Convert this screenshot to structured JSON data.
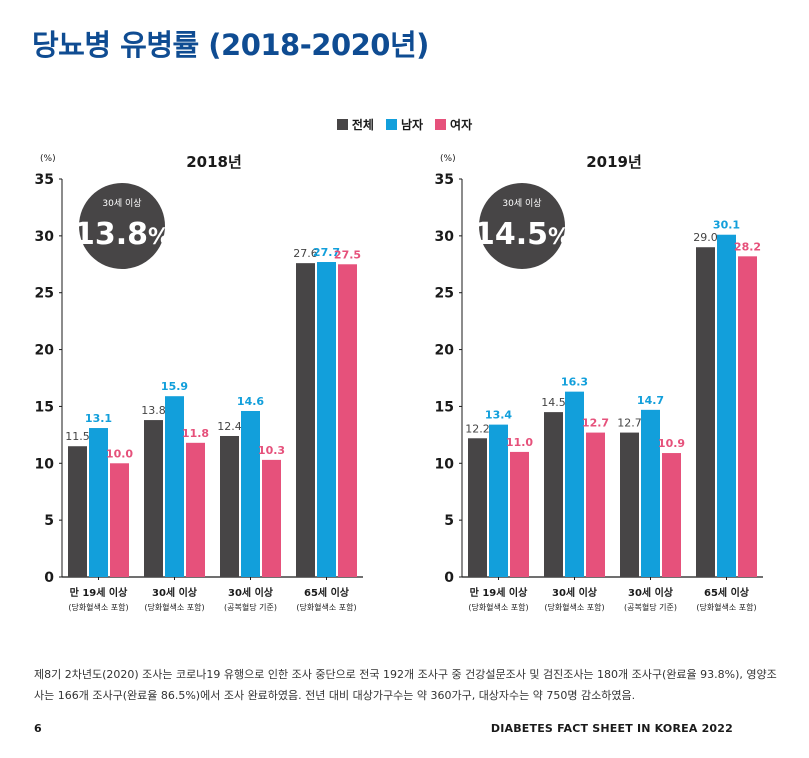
{
  "page": {
    "title": "당뇨병 유병률 (2018-2020년)",
    "footnote": "제8기 2차년도(2020) 조사는 코로나19 유행으로 인한 조사 중단으로 전국 192개 조사구 중 건강설문조사 및 검진조사는 180개 조사구(완료율 93.8%), 영양조사는 166개 조사구(완료율 86.5%)에서 조사 완료하였음. 전년 대비 대상가구수는 약 360가구, 대상자수는 약 750명 감소하였음.",
    "page_number": "6",
    "footer": "DIABETES FACT SHEET IN KOREA 2022"
  },
  "legend": [
    {
      "name": "전체",
      "color": "#474546"
    },
    {
      "name": "남자",
      "color": "#129fdb"
    },
    {
      "name": "여자",
      "color": "#e6517b"
    }
  ],
  "chart_data": [
    {
      "type": "bar",
      "title": "2018년",
      "ylabel": "(%)",
      "ylim": [
        0,
        35
      ],
      "yticks": [
        0,
        5,
        10,
        15,
        20,
        25,
        30,
        35
      ],
      "grid": false,
      "badge": {
        "label": "30세 이상",
        "value": "13.8",
        "unit": "%"
      },
      "categories": [
        {
          "label": "만 19세 이상",
          "sublabel": "(당화혈색소 포함)"
        },
        {
          "label": "30세 이상",
          "sublabel": "(당화혈색소 포함)"
        },
        {
          "label": "30세 이상",
          "sublabel": "(공복혈당 기준)"
        },
        {
          "label": "65세 이상",
          "sublabel": "(당화혈색소 포함)"
        }
      ],
      "series": [
        {
          "name": "전체",
          "color": "#474546",
          "label_color": "#444444",
          "values": [
            11.5,
            13.8,
            12.4,
            27.6
          ]
        },
        {
          "name": "남자",
          "color": "#129fdb",
          "label_color": "#129fdb",
          "values": [
            13.1,
            15.9,
            14.6,
            27.7
          ]
        },
        {
          "name": "여자",
          "color": "#e6517b",
          "label_color": "#e6517b",
          "values": [
            10.0,
            11.8,
            10.3,
            27.5
          ]
        }
      ]
    },
    {
      "type": "bar",
      "title": "2019년",
      "ylabel": "(%)",
      "ylim": [
        0,
        35
      ],
      "yticks": [
        0,
        5,
        10,
        15,
        20,
        25,
        30,
        35
      ],
      "grid": false,
      "badge": {
        "label": "30세 이상",
        "value": "14.5",
        "unit": "%"
      },
      "categories": [
        {
          "label": "만 19세 이상",
          "sublabel": "(당화혈색소 포함)"
        },
        {
          "label": "30세 이상",
          "sublabel": "(당화혈색소 포함)"
        },
        {
          "label": "30세 이상",
          "sublabel": "(공복혈당 기준)"
        },
        {
          "label": "65세 이상",
          "sublabel": "(당화혈색소 포함)"
        }
      ],
      "series": [
        {
          "name": "전체",
          "color": "#474546",
          "label_color": "#444444",
          "values": [
            12.2,
            14.5,
            12.7,
            29.0
          ]
        },
        {
          "name": "남자",
          "color": "#129fdb",
          "label_color": "#129fdb",
          "values": [
            13.4,
            16.3,
            14.7,
            30.1
          ]
        },
        {
          "name": "여자",
          "color": "#e6517b",
          "label_color": "#e6517b",
          "values": [
            11.0,
            12.7,
            10.9,
            28.2
          ]
        }
      ]
    }
  ]
}
